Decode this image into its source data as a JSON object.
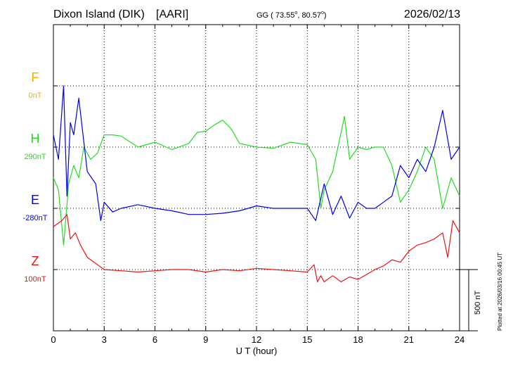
{
  "header": {
    "station": "Dixon Island (DIK)",
    "institute": "[AARI]",
    "coords_prefix": "GG ( 73.55",
    "coords_sep": ",  80.57",
    "coords_suffix": ")",
    "degree_sup": "o",
    "date": "2026/02/13"
  },
  "footer": {
    "plotted_at": "Plotted at 2026/03/16 00:45 UT"
  },
  "scale_bar": {
    "label": "500 nT",
    "value_nT": 500
  },
  "chart_data": {
    "type": "line",
    "xlabel": "U T (hour)",
    "xlim": [
      0,
      24
    ],
    "xticks": [
      "0",
      "3",
      "6",
      "9",
      "12",
      "15",
      "18",
      "21",
      "24"
    ],
    "grid": true,
    "channels": [
      {
        "name": "F",
        "baseline": "0nT",
        "color": "#f0b400",
        "points": []
      },
      {
        "name": "H",
        "baseline": "290nT",
        "color": "#22dd22",
        "points": [
          [
            0,
            -250
          ],
          [
            0.3,
            -350
          ],
          [
            0.6,
            -800
          ],
          [
            0.9,
            -300
          ],
          [
            1.2,
            -150
          ],
          [
            1.5,
            -250
          ],
          [
            1.8,
            0
          ],
          [
            2.2,
            -100
          ],
          [
            2.6,
            -50
          ],
          [
            3.0,
            100
          ],
          [
            3.5,
            100
          ],
          [
            4.0,
            90
          ],
          [
            5.0,
            0
          ],
          [
            6.0,
            40
          ],
          [
            7.0,
            -20
          ],
          [
            8.0,
            30
          ],
          [
            8.5,
            120
          ],
          [
            9.0,
            130
          ],
          [
            9.5,
            180
          ],
          [
            10.0,
            220
          ],
          [
            10.5,
            150
          ],
          [
            11.0,
            30
          ],
          [
            12.0,
            0
          ],
          [
            13.0,
            -10
          ],
          [
            14.0,
            40
          ],
          [
            15.0,
            20
          ],
          [
            15.5,
            -100
          ],
          [
            15.8,
            -500
          ],
          [
            16.0,
            -350
          ],
          [
            16.5,
            -200
          ],
          [
            17.0,
            120
          ],
          [
            17.2,
            250
          ],
          [
            17.5,
            -100
          ],
          [
            18.0,
            0
          ],
          [
            18.5,
            -20
          ],
          [
            19.0,
            0
          ],
          [
            19.5,
            0
          ],
          [
            20.0,
            -150
          ],
          [
            20.5,
            -450
          ],
          [
            21.0,
            -350
          ],
          [
            21.5,
            -200
          ],
          [
            22.0,
            0
          ],
          [
            22.5,
            -100
          ],
          [
            23.0,
            -500
          ],
          [
            23.5,
            -250
          ],
          [
            24.0,
            -400
          ]
        ]
      },
      {
        "name": "E",
        "baseline": "-280nT",
        "color": "#0000ee",
        "points": [
          [
            0,
            600
          ],
          [
            0.3,
            400
          ],
          [
            0.6,
            1000
          ],
          [
            0.8,
            100
          ],
          [
            1.0,
            700
          ],
          [
            1.2,
            600
          ],
          [
            1.5,
            900
          ],
          [
            2.0,
            300
          ],
          [
            2.5,
            200
          ],
          [
            2.8,
            -100
          ],
          [
            3.0,
            50
          ],
          [
            3.5,
            -30
          ],
          [
            4.0,
            0
          ],
          [
            5.0,
            30
          ],
          [
            6.0,
            0
          ],
          [
            7.0,
            -20
          ],
          [
            8.0,
            -50
          ],
          [
            9.0,
            -50
          ],
          [
            10.0,
            -40
          ],
          [
            11.0,
            -20
          ],
          [
            12.0,
            20
          ],
          [
            13.0,
            0
          ],
          [
            14.0,
            0
          ],
          [
            15.0,
            0
          ],
          [
            15.5,
            -100
          ],
          [
            16.0,
            200
          ],
          [
            16.5,
            -50
          ],
          [
            17.0,
            100
          ],
          [
            17.5,
            -80
          ],
          [
            18.0,
            50
          ],
          [
            18.5,
            0
          ],
          [
            19.0,
            0
          ],
          [
            19.5,
            50
          ],
          [
            20.0,
            100
          ],
          [
            20.5,
            350
          ],
          [
            21.0,
            250
          ],
          [
            21.5,
            400
          ],
          [
            22.0,
            300
          ],
          [
            22.5,
            500
          ],
          [
            23.0,
            800
          ],
          [
            23.5,
            400
          ],
          [
            24.0,
            500
          ]
        ]
      },
      {
        "name": "Z",
        "baseline": "100nT",
        "color": "#ee1111",
        "points": [
          [
            0,
            350
          ],
          [
            0.5,
            400
          ],
          [
            0.8,
            450
          ],
          [
            1.0,
            250
          ],
          [
            1.3,
            300
          ],
          [
            1.6,
            200
          ],
          [
            2.0,
            100
          ],
          [
            2.5,
            50
          ],
          [
            3.0,
            0
          ],
          [
            4.0,
            -10
          ],
          [
            5.0,
            -20
          ],
          [
            6.0,
            -10
          ],
          [
            7.0,
            0
          ],
          [
            8.0,
            0
          ],
          [
            9.0,
            -20
          ],
          [
            10.0,
            0
          ],
          [
            11.0,
            -10
          ],
          [
            12.0,
            10
          ],
          [
            13.0,
            0
          ],
          [
            14.0,
            -10
          ],
          [
            15.0,
            -20
          ],
          [
            15.4,
            40
          ],
          [
            15.6,
            -100
          ],
          [
            15.8,
            -50
          ],
          [
            16.0,
            -100
          ],
          [
            16.5,
            -50
          ],
          [
            17.0,
            -100
          ],
          [
            17.5,
            -60
          ],
          [
            18.0,
            -80
          ],
          [
            18.5,
            -40
          ],
          [
            19.0,
            0
          ],
          [
            19.5,
            30
          ],
          [
            20.0,
            80
          ],
          [
            20.5,
            60
          ],
          [
            21.0,
            150
          ],
          [
            21.5,
            200
          ],
          [
            22.0,
            220
          ],
          [
            22.5,
            250
          ],
          [
            23.0,
            300
          ],
          [
            23.3,
            100
          ],
          [
            23.6,
            400
          ],
          [
            24.0,
            300
          ]
        ]
      }
    ]
  }
}
